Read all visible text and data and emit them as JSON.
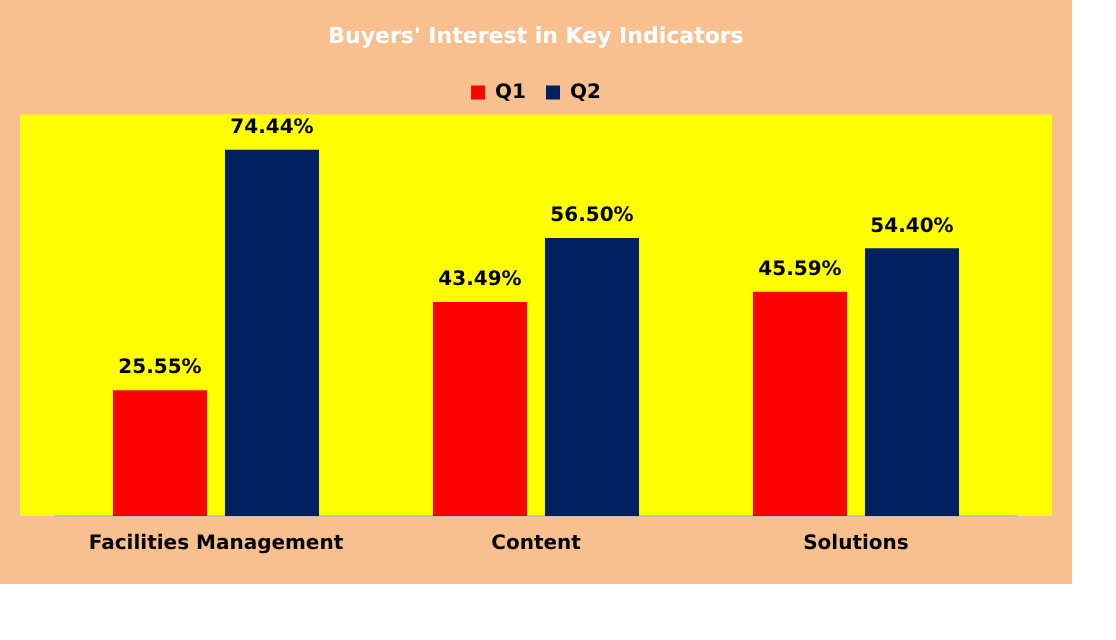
{
  "chart_data": {
    "type": "bar",
    "title": "Buyers' Interest in Key Indicators",
    "categories": [
      "Facilities Management",
      "Content",
      "Solutions"
    ],
    "series": [
      {
        "name": "Q1",
        "color": "#ff0000",
        "values": [
          25.55,
          43.49,
          45.59
        ],
        "value_labels": [
          "25.55%",
          "43.49%",
          "45.59%"
        ]
      },
      {
        "name": "Q2",
        "color": "#002060",
        "values": [
          74.44,
          56.5,
          54.4
        ],
        "value_labels": [
          "74.44%",
          "56.50%",
          "54.40%"
        ]
      }
    ],
    "legend": "top"
  }
}
